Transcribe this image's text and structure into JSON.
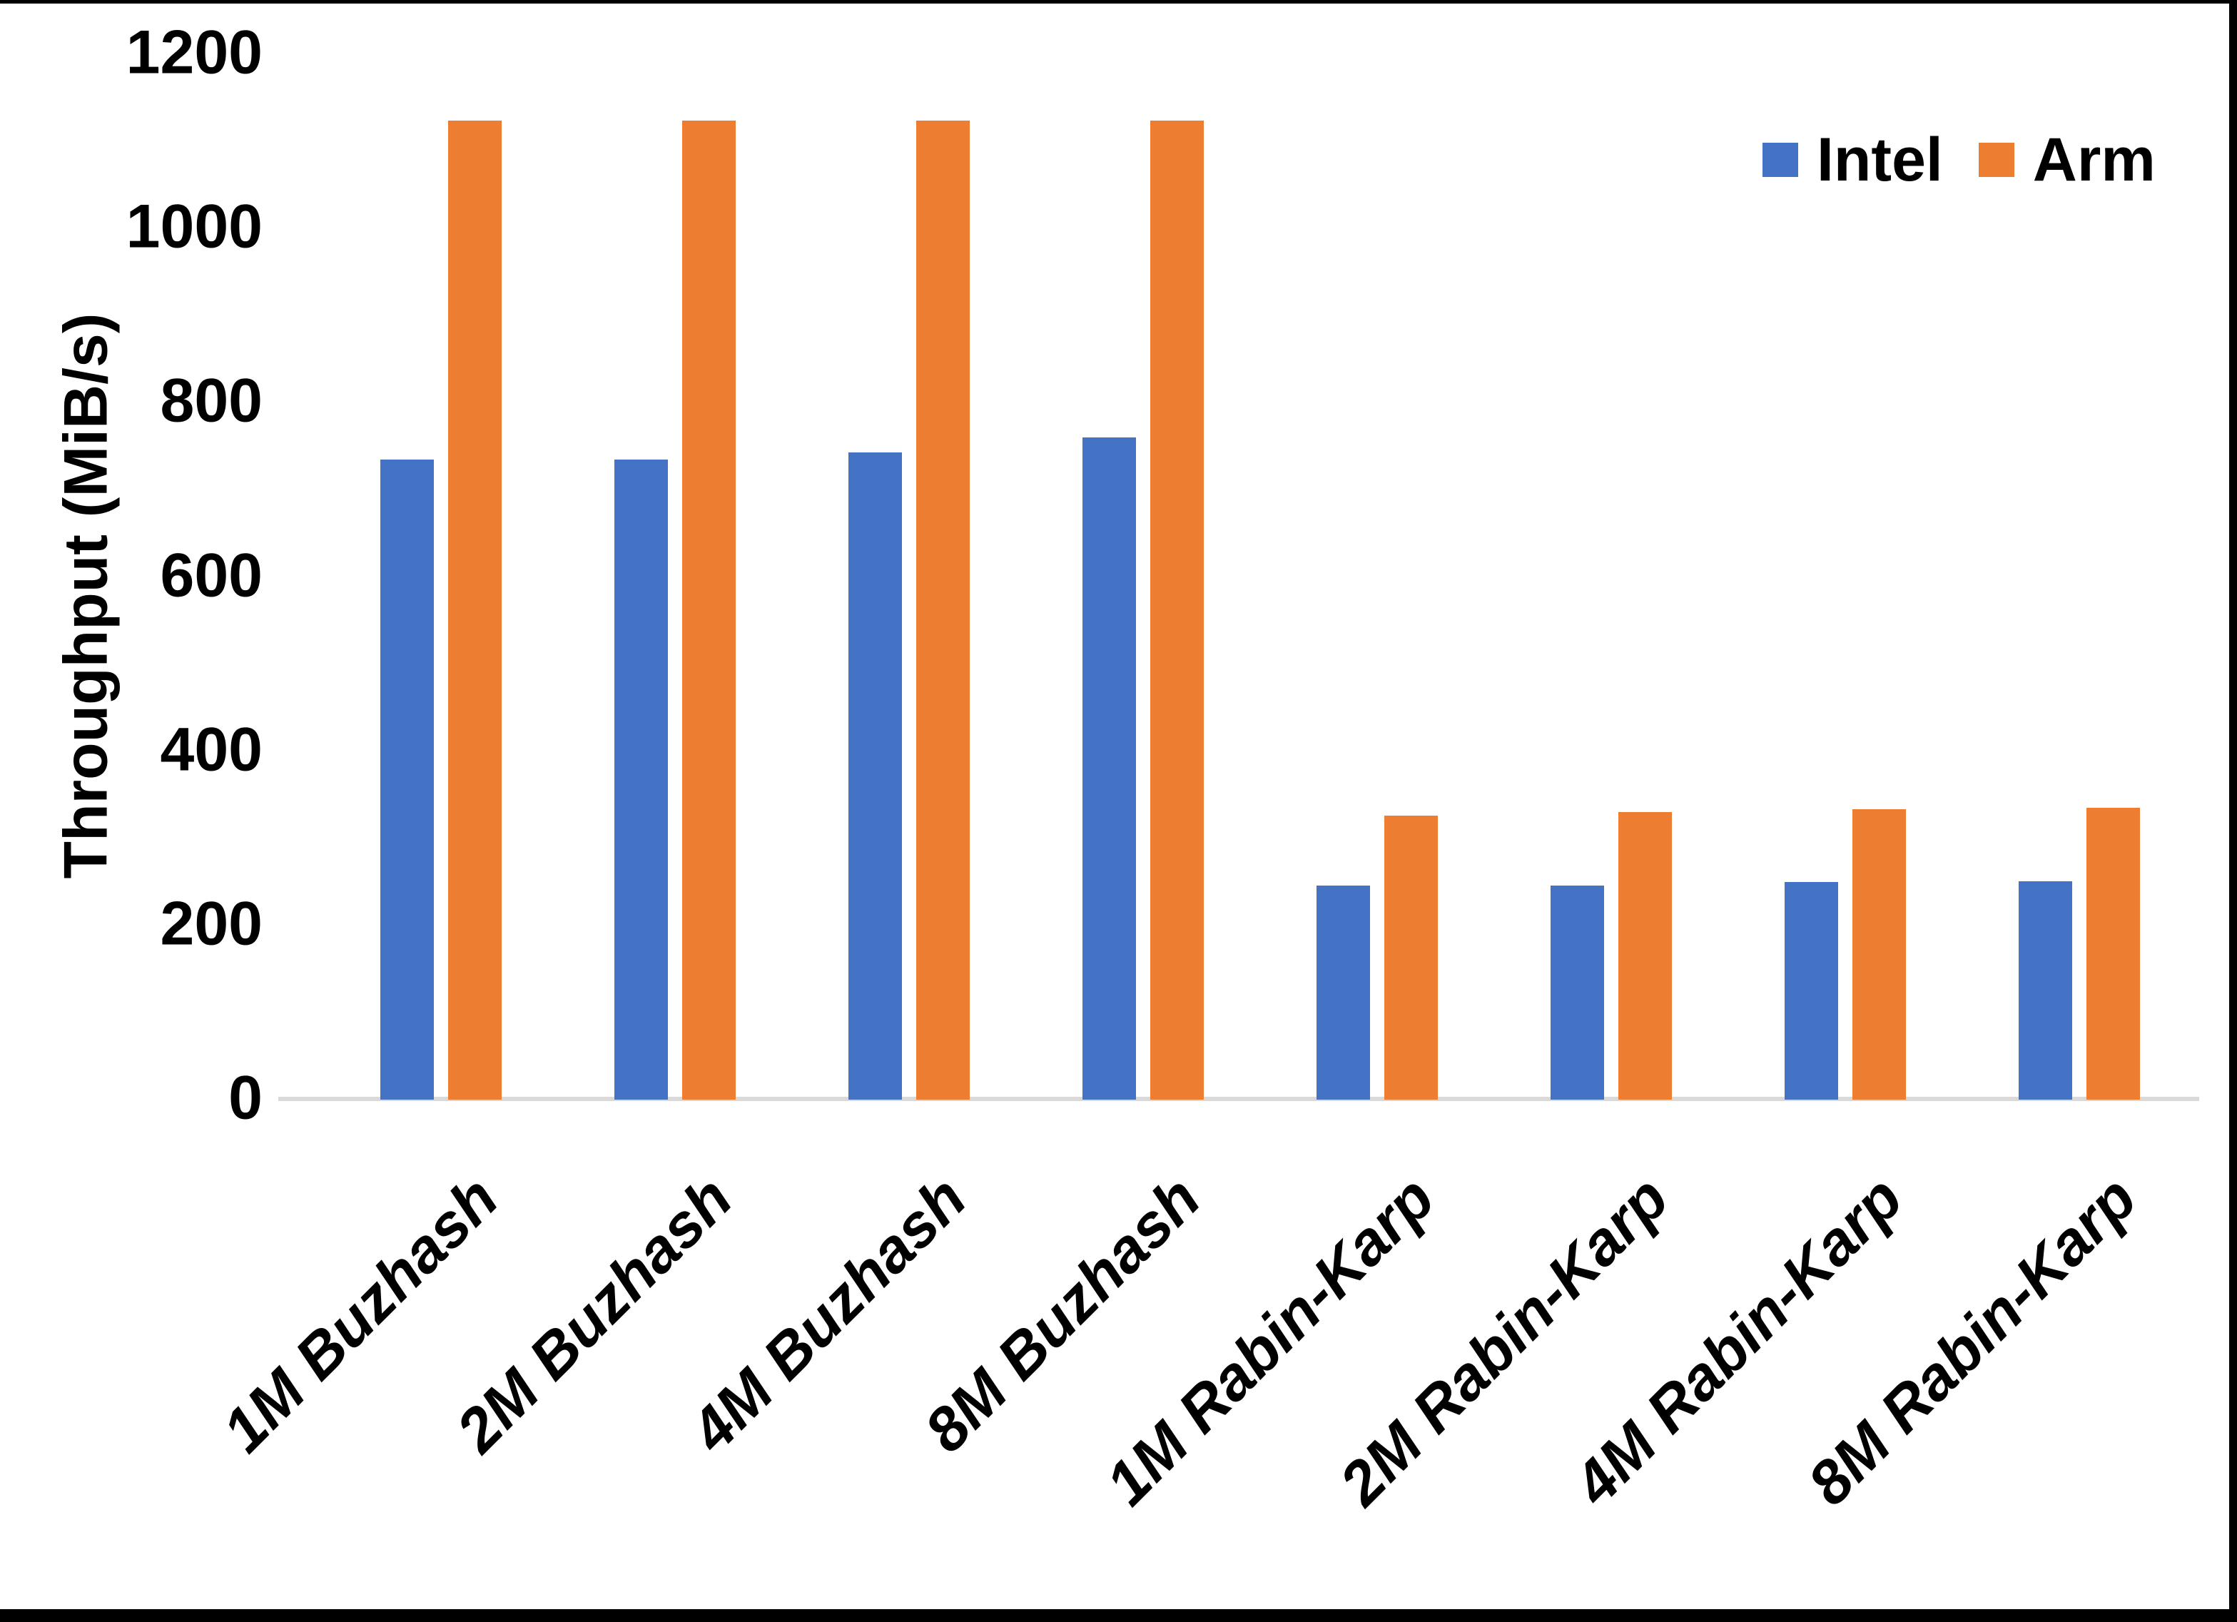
{
  "figure": {
    "background": "#FFFFFF",
    "frame_color": "#000000",
    "axis_line_color": "#D9D9D9",
    "text_color": "#000000"
  },
  "chart_data": {
    "type": "bar",
    "title": "",
    "xlabel": "",
    "ylabel": "Throughput (MiB/s)",
    "ylim": [
      0,
      1200
    ],
    "yticks": [
      0,
      200,
      400,
      600,
      800,
      1000,
      1200
    ],
    "grid": false,
    "legend_position": "top-right",
    "categories": [
      "1M Buzhash",
      "2M Buzhash",
      "4M Buzhash",
      "8M Buzhash",
      "1M Rabin-Karp",
      "2M Rabin-Karp",
      "4M Rabin-Karp",
      "8M Rabin-Karp"
    ],
    "series": [
      {
        "name": "Intel",
        "color": "#4472C4",
        "values": [
          735,
          735,
          743,
          760,
          246,
          246,
          250,
          251
        ]
      },
      {
        "name": "Arm",
        "color": "#ED7D31",
        "values": [
          1124,
          1124,
          1124,
          1124,
          326,
          330,
          333,
          335
        ]
      }
    ]
  }
}
